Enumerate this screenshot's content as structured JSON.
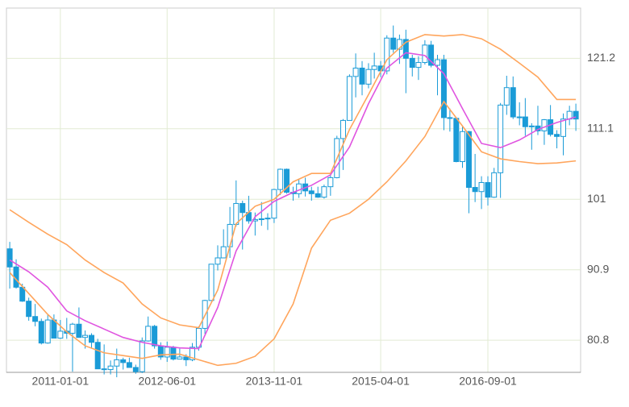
{
  "chart_data": {
    "type": "candlestick",
    "x": [
      "2010-05-01",
      "2010-06-01",
      "2010-07-01",
      "2010-08-01",
      "2010-09-01",
      "2010-10-01",
      "2010-11-01",
      "2010-12-01",
      "2011-01-01",
      "2011-02-01",
      "2011-03-01",
      "2011-04-01",
      "2011-05-01",
      "2011-06-01",
      "2011-07-01",
      "2011-08-01",
      "2011-09-01",
      "2011-10-01",
      "2011-11-01",
      "2011-12-01",
      "2012-01-01",
      "2012-02-01",
      "2012-03-01",
      "2012-04-01",
      "2012-05-01",
      "2012-06-01",
      "2012-07-01",
      "2012-08-01",
      "2012-09-01",
      "2012-10-01",
      "2012-11-01",
      "2012-12-01",
      "2013-01-01",
      "2013-02-01",
      "2013-03-01",
      "2013-04-01",
      "2013-05-01",
      "2013-06-01",
      "2013-07-01",
      "2013-08-01",
      "2013-09-01",
      "2013-10-01",
      "2013-11-01",
      "2013-12-01",
      "2014-01-01",
      "2014-02-01",
      "2014-03-01",
      "2014-04-01",
      "2014-05-01",
      "2014-06-01",
      "2014-07-01",
      "2014-08-01",
      "2014-09-01",
      "2014-10-01",
      "2014-11-01",
      "2014-12-01",
      "2015-01-01",
      "2015-02-01",
      "2015-03-01",
      "2015-04-01",
      "2015-05-01",
      "2015-06-01",
      "2015-07-01",
      "2015-08-01",
      "2015-09-01",
      "2015-10-01",
      "2015-11-01",
      "2015-12-01",
      "2016-01-01",
      "2016-02-01",
      "2016-03-01",
      "2016-04-01",
      "2016-05-01",
      "2016-06-01",
      "2016-07-01",
      "2016-08-01",
      "2016-09-01",
      "2016-10-01",
      "2016-11-01",
      "2016-12-01",
      "2017-01-01",
      "2017-02-01",
      "2017-03-01",
      "2017-04-01",
      "2017-05-01",
      "2017-06-01",
      "2017-07-01",
      "2017-08-01",
      "2017-09-01",
      "2017-10-01",
      "2017-11-01"
    ],
    "open": [
      93.9,
      91.3,
      88.4,
      86.4,
      84.2,
      83.5,
      80.4,
      83.7,
      81.1,
      82.1,
      81.8,
      83.1,
      81.2,
      81.5,
      80.5,
      76.7,
      76.6,
      77.1,
      78.0,
      77.6,
      76.9,
      76.3,
      80.7,
      82.8,
      80.0,
      78.4,
      79.8,
      78.1,
      78.4,
      78.0,
      79.8,
      82.5,
      86.5,
      91.7,
      92.6,
      94.2,
      97.4,
      100.4,
      99.1,
      97.9,
      98.1,
      98.2,
      98.3,
      102.4,
      105.3,
      102.0,
      101.8,
      103.2,
      102.2,
      101.8,
      101.3,
      102.8,
      104.1,
      109.7,
      112.3,
      118.6,
      119.8,
      117.5,
      119.6,
      120.1,
      119.4,
      124.1,
      122.5,
      123.9,
      121.2,
      119.9,
      120.6,
      123.1,
      120.2,
      121.0,
      112.7,
      112.6,
      106.4,
      110.7,
      102.7,
      102.1,
      103.4,
      101.3,
      104.8,
      114.5,
      117.0,
      112.8,
      112.8,
      111.4,
      111.5,
      110.8,
      112.4,
      110.3,
      110.0,
      112.5,
      113.6
    ],
    "high": [
      94.9,
      92.4,
      88.9,
      86.9,
      86.0,
      83.9,
      84.4,
      84.5,
      83.7,
      84.0,
      83.3,
      85.5,
      82.2,
      81.8,
      81.0,
      80.2,
      77.9,
      79.6,
      78.3,
      78.3,
      77.3,
      81.2,
      84.2,
      83.0,
      80.5,
      80.6,
      80.0,
      79.6,
      78.8,
      80.4,
      82.8,
      86.6,
      91.3,
      94.4,
      96.7,
      99.9,
      103.7,
      100.8,
      101.5,
      99.1,
      100.6,
      99.0,
      102.5,
      105.4,
      105.4,
      102.8,
      103.8,
      104.1,
      102.8,
      102.8,
      103.1,
      104.5,
      110.1,
      112.5,
      118.9,
      121.9,
      120.8,
      120.5,
      122.0,
      120.8,
      124.5,
      125.9,
      124.6,
      125.3,
      121.7,
      121.5,
      123.8,
      123.7,
      121.7,
      121.7,
      114.0,
      112.6,
      111.4,
      110.8,
      107.5,
      104.3,
      104.3,
      105.5,
      114.8,
      118.7,
      118.6,
      114.9,
      115.5,
      111.9,
      114.4,
      112.5,
      114.5,
      110.9,
      113.3,
      114.4,
      114.7
    ],
    "low": [
      88.2,
      88.2,
      86.3,
      83.6,
      82.8,
      80.2,
      80.3,
      81.2,
      81.0,
      81.0,
      76.3,
      81.3,
      79.6,
      79.7,
      76.9,
      75.9,
      75.9,
      75.5,
      76.6,
      77.1,
      76.0,
      76.1,
      80.6,
      79.6,
      78.0,
      77.7,
      77.9,
      78.1,
      77.1,
      77.8,
      79.3,
      81.7,
      86.4,
      90.8,
      92.6,
      92.6,
      97.1,
      93.8,
      97.5,
      95.8,
      97.2,
      96.6,
      97.6,
      101.6,
      101.8,
      100.8,
      101.2,
      101.4,
      100.8,
      101.2,
      101.1,
      101.5,
      104.0,
      105.2,
      112.3,
      115.6,
      115.9,
      116.9,
      118.3,
      118.5,
      118.9,
      122.0,
      120.4,
      116.2,
      118.6,
      118.1,
      120.3,
      119.9,
      115.9,
      110.9,
      110.7,
      106.3,
      105.5,
      99.0,
      100.6,
      99.6,
      100.1,
      101.2,
      101.2,
      113.1,
      112.5,
      111.6,
      110.1,
      108.1,
      110.2,
      108.8,
      110.0,
      108.3,
      107.3,
      111.6,
      110.8
    ],
    "close": [
      91.3,
      88.4,
      86.4,
      84.2,
      83.5,
      80.4,
      83.7,
      81.1,
      82.1,
      81.8,
      83.1,
      81.2,
      81.5,
      80.5,
      76.7,
      76.6,
      77.1,
      78.0,
      77.6,
      76.9,
      76.3,
      80.7,
      82.8,
      80.0,
      78.4,
      79.8,
      78.1,
      78.4,
      78.0,
      79.8,
      82.5,
      86.5,
      91.7,
      92.6,
      94.2,
      97.4,
      100.4,
      99.1,
      97.9,
      98.1,
      98.2,
      98.3,
      102.4,
      105.3,
      102.0,
      101.8,
      103.2,
      102.2,
      101.8,
      101.3,
      102.8,
      104.1,
      109.7,
      112.3,
      118.6,
      119.8,
      117.5,
      119.6,
      120.1,
      119.4,
      124.1,
      122.5,
      123.9,
      121.2,
      119.9,
      120.6,
      123.1,
      120.2,
      121.0,
      112.7,
      112.6,
      106.4,
      110.7,
      102.7,
      102.1,
      103.4,
      101.3,
      104.8,
      114.5,
      117.0,
      112.8,
      112.8,
      111.4,
      111.5,
      110.8,
      112.4,
      110.3,
      110.0,
      112.5,
      113.6,
      112.5
    ],
    "up_color": "#1a9bd7",
    "down_color": "#1a9bd7",
    "bands": [
      {
        "color": "#ffa55c",
        "x": [
          "2010-05-01",
          "2010-08-01",
          "2010-11-01",
          "2011-02-01",
          "2011-05-01",
          "2011-08-01",
          "2011-11-01",
          "2012-02-01",
          "2012-05-01",
          "2012-08-01",
          "2012-11-01",
          "2013-02-01",
          "2013-05-01",
          "2013-08-01",
          "2013-11-01",
          "2014-02-01",
          "2014-05-01",
          "2014-08-01",
          "2014-11-01",
          "2015-02-01",
          "2015-05-01",
          "2015-08-01",
          "2015-11-01",
          "2016-02-01",
          "2016-05-01",
          "2016-08-01",
          "2016-11-01",
          "2017-02-01",
          "2017-05-01",
          "2017-08-01",
          "2017-11-01"
        ],
        "values": [
          99.5,
          97.7,
          96,
          94.5,
          92.3,
          90.5,
          89,
          86,
          84,
          83,
          82.6,
          88,
          97.5,
          100,
          101,
          103.5,
          104.7,
          104.7,
          111,
          116,
          121,
          123.5,
          124.6,
          124.4,
          124.6,
          124,
          122.5,
          120.5,
          118.5,
          115.3,
          115.3
        ]
      },
      {
        "color": "#e055e0",
        "x": [
          "2010-05-01",
          "2010-08-01",
          "2010-11-01",
          "2011-02-01",
          "2011-05-01",
          "2011-08-01",
          "2011-11-01",
          "2012-02-01",
          "2012-05-01",
          "2012-08-01",
          "2012-11-01",
          "2013-02-01",
          "2013-05-01",
          "2013-08-01",
          "2013-11-01",
          "2014-02-01",
          "2014-05-01",
          "2014-08-01",
          "2014-11-01",
          "2015-02-01",
          "2015-05-01",
          "2015-08-01",
          "2015-11-01",
          "2016-02-01",
          "2016-05-01",
          "2016-08-01",
          "2016-11-01",
          "2017-02-01",
          "2017-05-01",
          "2017-08-01",
          "2017-11-01"
        ],
        "values": [
          92.3,
          90.6,
          88.4,
          85,
          83.6,
          82.4,
          81.2,
          80.5,
          80,
          79.7,
          79.6,
          85.5,
          93.6,
          98.5,
          100.7,
          102,
          103,
          104.5,
          108.5,
          114.7,
          119.8,
          122,
          121.6,
          119,
          114,
          109,
          108.4,
          109.5,
          111,
          112,
          112.8
        ]
      },
      {
        "color": "#ffa55c",
        "x": [
          "2010-05-01",
          "2010-08-01",
          "2010-11-01",
          "2011-02-01",
          "2011-05-01",
          "2011-08-01",
          "2011-11-01",
          "2012-02-01",
          "2012-05-01",
          "2012-08-01",
          "2012-11-01",
          "2013-02-01",
          "2013-05-01",
          "2013-08-01",
          "2013-11-01",
          "2014-02-01",
          "2014-05-01",
          "2014-08-01",
          "2014-11-01",
          "2015-02-01",
          "2015-05-01",
          "2015-08-01",
          "2015-11-01",
          "2016-02-01",
          "2016-05-01",
          "2016-08-01",
          "2016-11-01",
          "2017-02-01",
          "2017-05-01",
          "2017-08-01",
          "2017-11-01"
        ],
        "values": [
          90.5,
          87.5,
          84.5,
          82,
          80,
          79,
          78.6,
          78.2,
          78.7,
          78.8,
          78,
          77.2,
          77.5,
          78.5,
          81,
          86,
          94,
          98,
          99,
          101,
          103.5,
          106.5,
          110,
          115,
          111.5,
          107.8,
          106.8,
          106.4,
          106.1,
          106.2,
          106.5
        ]
      }
    ],
    "xlim": [
      "2010-04-15",
      "2017-11-24"
    ],
    "xticks": [
      "2011-01-01",
      "2012-06-01",
      "2013-11-01",
      "2015-04-01",
      "2016-09-01"
    ],
    "ylim": [
      76.2,
      128.4
    ],
    "yticks": [
      80.8,
      90.9,
      101,
      111.1,
      121.2
    ],
    "grid": true
  }
}
